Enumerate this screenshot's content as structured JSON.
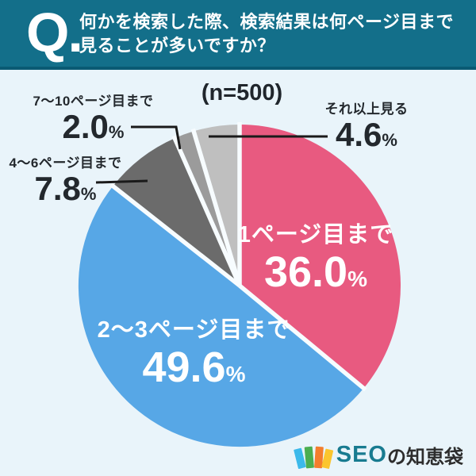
{
  "header": {
    "q_label": "Q.",
    "title_line1": "何かを検索した際、検索結果は何ページ目まで",
    "title_line2": "見ることが多いですか？",
    "bg_color": "#136f8a"
  },
  "sample_label": "(n=500)",
  "percent_symbol": "%",
  "chart_data": {
    "type": "pie",
    "title": "何かを検索した際、検索結果は何ページ目まで見ることが多いですか？",
    "sample_size_label": "(n=500)",
    "start_angle_deg": 0,
    "direction": "clockwise",
    "separator_color": "#f7fcff",
    "segments": [
      {
        "label": "1ページ目まで",
        "value": 36.0,
        "display": "36.0",
        "color": "#e85a80",
        "label_position": "inside"
      },
      {
        "label": "2〜3ページ目まで",
        "value": 49.6,
        "display": "49.6",
        "color": "#57a7e6",
        "label_position": "inside"
      },
      {
        "label": "4〜6ページ目まで",
        "value": 7.8,
        "display": "7.8",
        "color": "#6b6b6b",
        "label_position": "outside"
      },
      {
        "label": "7〜10ページ目まで",
        "value": 2.0,
        "display": "2.0",
        "color": "#9b9b9b",
        "label_position": "outside"
      },
      {
        "label": "それ以上見る",
        "value": 4.6,
        "display": "4.6",
        "color": "#bfbfbf",
        "label_position": "outside"
      }
    ]
  },
  "footer": {
    "brand_seo": "SEO",
    "brand_suffix": "の知恵袋"
  },
  "colors": {
    "background": "#e9f4fa",
    "header_teal": "#136f8a",
    "header_border": "#0a5a73",
    "text_dark": "#23282d",
    "leader_line": "#1a1a1a"
  }
}
